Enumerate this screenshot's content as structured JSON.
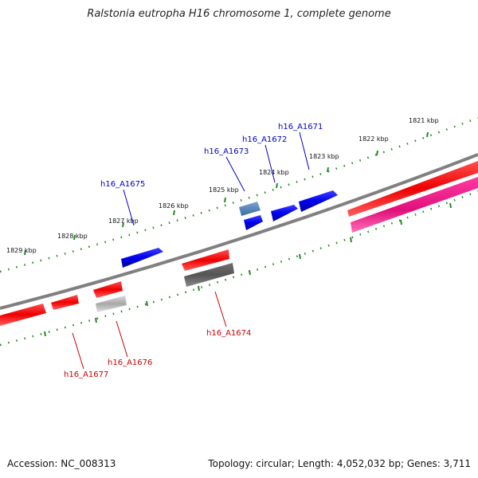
{
  "title": "Ralstonia eutropha H16 chromosome 1, complete genome",
  "footer": {
    "accession": "Accession: NC_008313",
    "summary": "Topology: circular; Length: 4,052,032 bp; Genes: 3,711"
  },
  "ruler_labels": [
    "1821 kbp",
    "1822 kbp",
    "1823 kbp",
    "1824 kbp",
    "1825 kbp",
    "1826 kbp",
    "1827 kbp",
    "1828 kbp",
    "1829 kbp"
  ],
  "gene_labels": [
    {
      "text": "h16_A1671",
      "color": "#0000cc"
    },
    {
      "text": "h16_A1672",
      "color": "#0000cc"
    },
    {
      "text": "h16_A1673",
      "color": "#0000cc"
    },
    {
      "text": "h16_A1675",
      "color": "#0000cc"
    },
    {
      "text": "h16_A1674",
      "color": "#cc0000"
    },
    {
      "text": "h16_A1676",
      "color": "#cc0000"
    },
    {
      "text": "h16_A1677",
      "color": "#cc0000"
    }
  ],
  "colors": {
    "backbone": "#808080",
    "forward": "#0000ee",
    "reverse": "#ee0000",
    "rna": "#ee1493",
    "tick": "#228b22",
    "pseudo_light": "#b0b0b0",
    "pseudo_dark": "#606060",
    "steel": "#4a7ab0"
  }
}
